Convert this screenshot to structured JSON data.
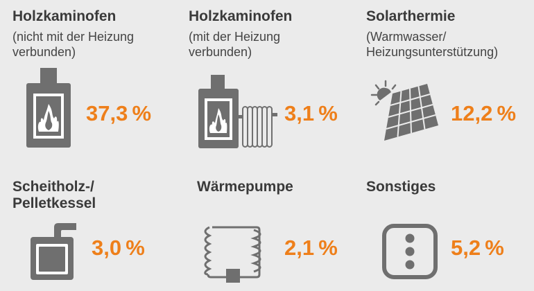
{
  "chart_data": {
    "type": "table",
    "items": [
      {
        "title": "Holzkaminofen",
        "subtitle": [
          "(nicht mit der Heizung",
          "verbunden)"
        ],
        "value": 37.3,
        "label": "37,3 %",
        "icon": "wood-stove-icon"
      },
      {
        "title": "Holzkaminofen",
        "subtitle": [
          "(mit der Heizung",
          "verbunden)"
        ],
        "value": 3.1,
        "label": "3,1 %",
        "icon": "wood-stove-radiator-icon"
      },
      {
        "title": "Solarthermie",
        "subtitle": [
          "(Warmwasser/",
          "Heizungsunterstützung)"
        ],
        "value": 12.2,
        "label": "12,2 %",
        "icon": "solar-panel-icon"
      },
      {
        "title": [
          "Scheitholz-/",
          "Pelletkessel"
        ],
        "subtitle": [],
        "value": 3.0,
        "label": "3,0 %",
        "icon": "boiler-icon"
      },
      {
        "title": "Wärmepumpe",
        "subtitle": [],
        "value": 2.1,
        "label": "2,1 %",
        "icon": "heat-pump-icon"
      },
      {
        "title": "Sonstiges",
        "subtitle": [],
        "value": 5.2,
        "label": "5,2 %",
        "icon": "other-icon"
      }
    ],
    "colors": {
      "accent": "#ee7f1a",
      "icon": "#6f6f6f",
      "text": "#3a3a3a"
    }
  }
}
